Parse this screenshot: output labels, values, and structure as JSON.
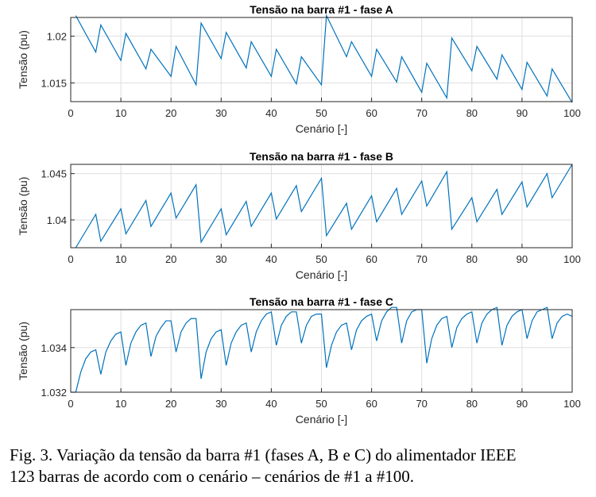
{
  "caption": {
    "line1": "Fig. 3. Variação da tensão da barra #1 (fases A, B e C) do alimentador IEEE",
    "line2": "123 barras de acordo com o cenário – cenários de #1 a #100."
  },
  "chart_data": [
    {
      "type": "line",
      "title": "Tensão na barra #1 - fase A",
      "xlabel": "Cenário [-]",
      "ylabel": "Tensão (pu)",
      "xlim": [
        0,
        100
      ],
      "ylim": [
        1.013,
        1.022
      ],
      "xticks": [
        0,
        10,
        20,
        30,
        40,
        50,
        60,
        70,
        80,
        90,
        100
      ],
      "yticks": [
        1.015,
        1.02
      ],
      "ytick_labels": [
        "1.015",
        "1.02"
      ],
      "grid": true,
      "x": [
        1,
        5,
        6,
        10,
        11,
        15,
        16,
        20,
        21,
        25,
        26,
        30,
        31,
        35,
        36,
        40,
        41,
        45,
        46,
        50,
        51,
        55,
        56,
        60,
        61,
        65,
        66,
        70,
        71,
        75,
        76,
        80,
        81,
        85,
        86,
        90,
        91,
        95,
        96,
        100
      ],
      "values": [
        1.0222,
        1.0183,
        1.0212,
        1.0174,
        1.0203,
        1.0165,
        1.0186,
        1.0157,
        1.0189,
        1.0148,
        1.0214,
        1.0176,
        1.0204,
        1.0166,
        1.0194,
        1.0157,
        1.0186,
        1.0149,
        1.0178,
        1.0148,
        1.0222,
        1.0178,
        1.0194,
        1.0157,
        1.0186,
        1.0151,
        1.0178,
        1.014,
        1.0171,
        1.0134,
        1.0198,
        1.0163,
        1.0189,
        1.0154,
        1.018,
        1.0143,
        1.0172,
        1.0136,
        1.0165,
        1.0129
      ]
    },
    {
      "type": "line",
      "title": "Tensão na barra #1 - fase B",
      "xlabel": "Cenário [-]",
      "ylabel": "Tensão (pu)",
      "xlim": [
        0,
        100
      ],
      "ylim": [
        1.037,
        1.046
      ],
      "xticks": [
        0,
        10,
        20,
        30,
        40,
        50,
        60,
        70,
        80,
        90,
        100
      ],
      "yticks": [
        1.04,
        1.045
      ],
      "ytick_labels": [
        "1.04",
        "1.045"
      ],
      "grid": true,
      "x": [
        1,
        5,
        6,
        10,
        11,
        15,
        16,
        20,
        21,
        25,
        26,
        30,
        31,
        35,
        36,
        40,
        41,
        45,
        46,
        50,
        51,
        55,
        56,
        60,
        61,
        65,
        66,
        70,
        71,
        75,
        76,
        80,
        81,
        85,
        86,
        90,
        91,
        95,
        96,
        100
      ],
      "values": [
        1.037,
        1.0406,
        1.0377,
        1.0412,
        1.0385,
        1.0421,
        1.0393,
        1.0429,
        1.0402,
        1.0438,
        1.0376,
        1.0412,
        1.0384,
        1.042,
        1.0393,
        1.0429,
        1.0401,
        1.0437,
        1.0409,
        1.0445,
        1.0383,
        1.0418,
        1.039,
        1.0426,
        1.0398,
        1.0434,
        1.0406,
        1.0442,
        1.0415,
        1.0452,
        1.039,
        1.0424,
        1.0398,
        1.0433,
        1.0406,
        1.0441,
        1.0414,
        1.045,
        1.0424,
        1.046
      ]
    },
    {
      "type": "line",
      "title": "Tensão na barra #1 - fase C",
      "xlabel": "Cenário [-]",
      "ylabel": "Tensão (pu)",
      "xlim": [
        0,
        100
      ],
      "ylim": [
        1.032,
        1.0357
      ],
      "xticks": [
        0,
        10,
        20,
        30,
        40,
        50,
        60,
        70,
        80,
        90,
        100
      ],
      "yticks": [
        1.032,
        1.034
      ],
      "ytick_labels": [
        "1.032",
        "1.034"
      ],
      "grid": true,
      "x": [
        0,
        1,
        2,
        3,
        4,
        5,
        6,
        7,
        8,
        9,
        10,
        11,
        12,
        13,
        14,
        15,
        16,
        17,
        18,
        19,
        20,
        21,
        22,
        23,
        24,
        25,
        26,
        27,
        28,
        29,
        30,
        31,
        32,
        33,
        34,
        35,
        36,
        37,
        38,
        39,
        40,
        41,
        42,
        43,
        44,
        45,
        46,
        47,
        48,
        49,
        50,
        51,
        52,
        53,
        54,
        55,
        56,
        57,
        58,
        59,
        60,
        61,
        62,
        63,
        64,
        65,
        66,
        67,
        68,
        69,
        70,
        71,
        72,
        73,
        74,
        75,
        76,
        77,
        78,
        79,
        80,
        81,
        82,
        83,
        84,
        85,
        86,
        87,
        88,
        89,
        90,
        91,
        92,
        93,
        94,
        95,
        96,
        97,
        98,
        99,
        100
      ],
      "values": [
        1.032,
        1.032,
        1.0329,
        1.0335,
        1.0338,
        1.0339,
        1.0328,
        1.0338,
        1.0343,
        1.0346,
        1.0347,
        1.0332,
        1.0342,
        1.0347,
        1.035,
        1.0351,
        1.0336,
        1.0345,
        1.0349,
        1.0352,
        1.0352,
        1.0338,
        1.0347,
        1.0351,
        1.0353,
        1.0353,
        1.0326,
        1.0338,
        1.0344,
        1.0347,
        1.0348,
        1.0332,
        1.0342,
        1.0347,
        1.035,
        1.0351,
        1.0338,
        1.0347,
        1.0352,
        1.0355,
        1.0356,
        1.0341,
        1.035,
        1.0354,
        1.0356,
        1.0356,
        1.0342,
        1.035,
        1.0354,
        1.0355,
        1.0355,
        1.0331,
        1.0341,
        1.0347,
        1.035,
        1.0351,
        1.0339,
        1.0348,
        1.0352,
        1.0354,
        1.0355,
        1.0343,
        1.0352,
        1.0356,
        1.0358,
        1.0358,
        1.0342,
        1.0352,
        1.0356,
        1.0357,
        1.0357,
        1.0333,
        1.0344,
        1.035,
        1.0353,
        1.0354,
        1.034,
        1.0349,
        1.0353,
        1.0355,
        1.0356,
        1.0342,
        1.0351,
        1.0355,
        1.0357,
        1.0358,
        1.0341,
        1.035,
        1.0354,
        1.0356,
        1.0357,
        1.0344,
        1.0352,
        1.0356,
        1.0357,
        1.0358,
        1.0344,
        1.0351,
        1.0354,
        1.0355,
        1.0354
      ]
    }
  ]
}
